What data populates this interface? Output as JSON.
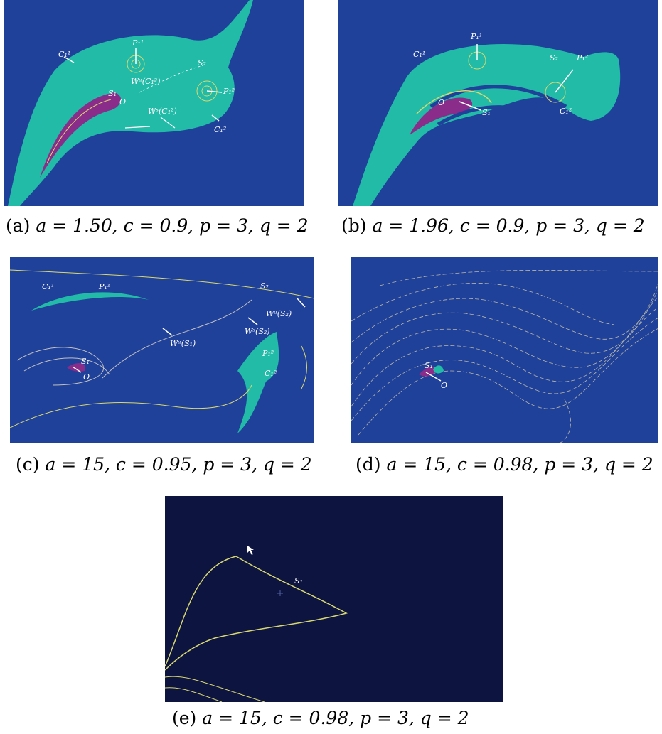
{
  "colors": {
    "panel_blue": "#20419a",
    "panel_dark": "#0d1440",
    "basin_teal": "#21bba7",
    "basin_purple": "#8a2c8a",
    "trace_yellow": "#d8d870"
  },
  "panels": [
    {
      "tag": "(a)",
      "params": "a = 1.50,  c = 0.9,  p = 3,  q = 2",
      "labels": {
        "C11": "C₁¹",
        "P11": "P₁¹",
        "S2": "S₂",
        "Wu": "Wᵘ(C₁²)",
        "S1": "S₁",
        "P12": "P₁²",
        "O": "O",
        "Ws": "Wˢ(C₁²)",
        "C12": "C₁²"
      }
    },
    {
      "tag": "(b)",
      "params": "a = 1.96,  c = 0.9,  p = 3,  q = 2",
      "labels": {
        "P11": "P₁¹",
        "C11": "C₁¹",
        "S2": "S₂",
        "P12": "P₁²",
        "O": "O",
        "S1": "S₁",
        "C12": "C₁²"
      }
    },
    {
      "tag": "(c)",
      "params": "a = 15,  c = 0.95,  p = 3,  q = 2",
      "labels": {
        "C11": "C₁¹",
        "P11": "P₁¹",
        "S2": "S₂",
        "WuS2": "Wᵘ(S₂)",
        "WsS2": "Wˢ(S₂)",
        "WuS1": "Wᵘ(S₁)",
        "S1": "S₁",
        "O": "O",
        "P12": "P₁²",
        "C12": "C₁²"
      }
    },
    {
      "tag": "(d)",
      "params": "a = 15,  c = 0.98,  p = 3,  q = 2",
      "labels": {
        "S1": "S₁",
        "O": "O"
      }
    },
    {
      "tag": "(e)",
      "params": "a = 15,  c = 0.98,  p = 3,  q = 2",
      "labels": {
        "S1": "S₁"
      }
    }
  ]
}
